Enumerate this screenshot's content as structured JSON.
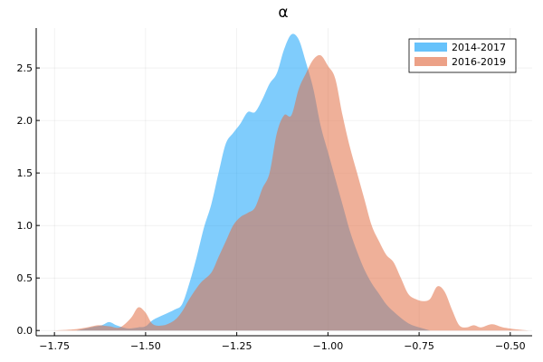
{
  "chart_data": {
    "type": "area",
    "title": "α",
    "xlabel": "",
    "ylabel": "",
    "xlim": [
      -1.8,
      -0.44
    ],
    "ylim": [
      -0.05,
      2.88
    ],
    "xticks": [
      -1.75,
      -1.5,
      -1.25,
      -1.0,
      -0.75,
      -0.5
    ],
    "xtick_labels": [
      "−1.75",
      "−1.50",
      "−1.25",
      "−1.00",
      "−0.75",
      "−0.50"
    ],
    "yticks": [
      0.0,
      0.5,
      1.0,
      1.5,
      2.0,
      2.5
    ],
    "ytick_labels": [
      "0.0",
      "0.5",
      "1.0",
      "1.5",
      "2.0",
      "2.5"
    ],
    "grid": true,
    "legend_position": "top-right",
    "series": [
      {
        "name": "2014-2017",
        "color": "#009af9",
        "opacity": 0.5,
        "x": [
          -1.69,
          -1.65,
          -1.62,
          -1.6,
          -1.58,
          -1.55,
          -1.52,
          -1.5,
          -1.48,
          -1.45,
          -1.42,
          -1.4,
          -1.38,
          -1.36,
          -1.34,
          -1.32,
          -1.3,
          -1.28,
          -1.26,
          -1.24,
          -1.22,
          -1.2,
          -1.18,
          -1.16,
          -1.14,
          -1.12,
          -1.1,
          -1.08,
          -1.06,
          -1.04,
          -1.02,
          -1.0,
          -0.98,
          -0.96,
          -0.94,
          -0.92,
          -0.9,
          -0.88,
          -0.86,
          -0.84,
          -0.82,
          -0.8,
          -0.78,
          -0.76,
          -0.74,
          -0.72
        ],
        "y": [
          0.0,
          0.03,
          0.05,
          0.08,
          0.05,
          0.02,
          0.03,
          0.04,
          0.1,
          0.15,
          0.2,
          0.25,
          0.45,
          0.7,
          0.98,
          1.2,
          1.5,
          1.78,
          1.88,
          1.97,
          2.08,
          2.08,
          2.2,
          2.35,
          2.45,
          2.68,
          2.82,
          2.77,
          2.55,
          2.3,
          1.95,
          1.7,
          1.45,
          1.2,
          0.95,
          0.75,
          0.58,
          0.45,
          0.35,
          0.25,
          0.18,
          0.12,
          0.07,
          0.04,
          0.02,
          0.0
        ]
      },
      {
        "name": "2016-2019",
        "color": "#e26f46",
        "opacity": 0.55,
        "x": [
          -1.75,
          -1.7,
          -1.66,
          -1.63,
          -1.6,
          -1.57,
          -1.54,
          -1.52,
          -1.5,
          -1.48,
          -1.45,
          -1.42,
          -1.4,
          -1.38,
          -1.35,
          -1.32,
          -1.3,
          -1.28,
          -1.26,
          -1.24,
          -1.22,
          -1.2,
          -1.18,
          -1.16,
          -1.14,
          -1.12,
          -1.1,
          -1.08,
          -1.06,
          -1.04,
          -1.02,
          -1.0,
          -0.98,
          -0.96,
          -0.94,
          -0.92,
          -0.9,
          -0.88,
          -0.86,
          -0.84,
          -0.82,
          -0.8,
          -0.78,
          -0.76,
          -0.74,
          -0.72,
          -0.7,
          -0.68,
          -0.66,
          -0.64,
          -0.62,
          -0.6,
          -0.58,
          -0.55,
          -0.52,
          -0.48,
          -0.45
        ],
        "y": [
          0.0,
          0.01,
          0.03,
          0.05,
          0.04,
          0.03,
          0.12,
          0.22,
          0.17,
          0.06,
          0.05,
          0.1,
          0.18,
          0.3,
          0.45,
          0.55,
          0.7,
          0.85,
          1.0,
          1.08,
          1.12,
          1.17,
          1.35,
          1.5,
          1.88,
          2.05,
          2.05,
          2.3,
          2.45,
          2.58,
          2.62,
          2.52,
          2.4,
          2.05,
          1.75,
          1.5,
          1.25,
          1.0,
          0.85,
          0.72,
          0.65,
          0.5,
          0.35,
          0.3,
          0.28,
          0.3,
          0.42,
          0.37,
          0.2,
          0.05,
          0.03,
          0.05,
          0.03,
          0.06,
          0.03,
          0.01,
          0.0
        ]
      }
    ]
  }
}
